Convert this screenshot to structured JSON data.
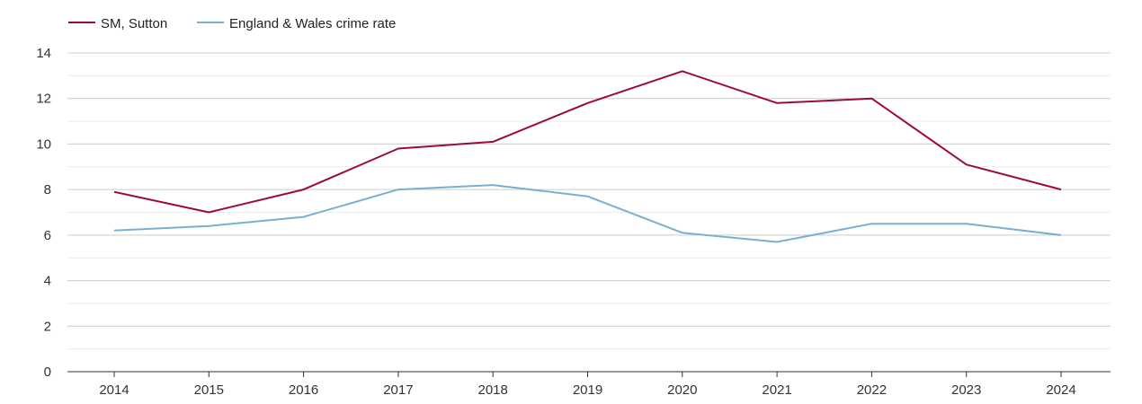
{
  "chart_data": {
    "type": "line",
    "title": "",
    "xlabel": "",
    "ylabel": "",
    "categories": [
      "2014",
      "2015",
      "2016",
      "2017",
      "2018",
      "2019",
      "2020",
      "2021",
      "2022",
      "2023",
      "2024"
    ],
    "ylim": [
      0,
      14
    ],
    "yticks": [
      0,
      2,
      4,
      6,
      8,
      10,
      12,
      14
    ],
    "grid": true,
    "legend_position": "top-left",
    "series": [
      {
        "name": "SM, Sutton",
        "color": "#9b0d32",
        "values": [
          7.9,
          7.0,
          8.0,
          9.8,
          10.1,
          11.8,
          13.2,
          11.8,
          12.0,
          9.1,
          8.0
        ]
      },
      {
        "name": "England & Wales crime rate",
        "color": "#7aafcf",
        "values": [
          6.2,
          6.4,
          6.8,
          8.0,
          8.2,
          7.7,
          6.1,
          5.7,
          6.5,
          6.5,
          6.0
        ]
      }
    ]
  }
}
